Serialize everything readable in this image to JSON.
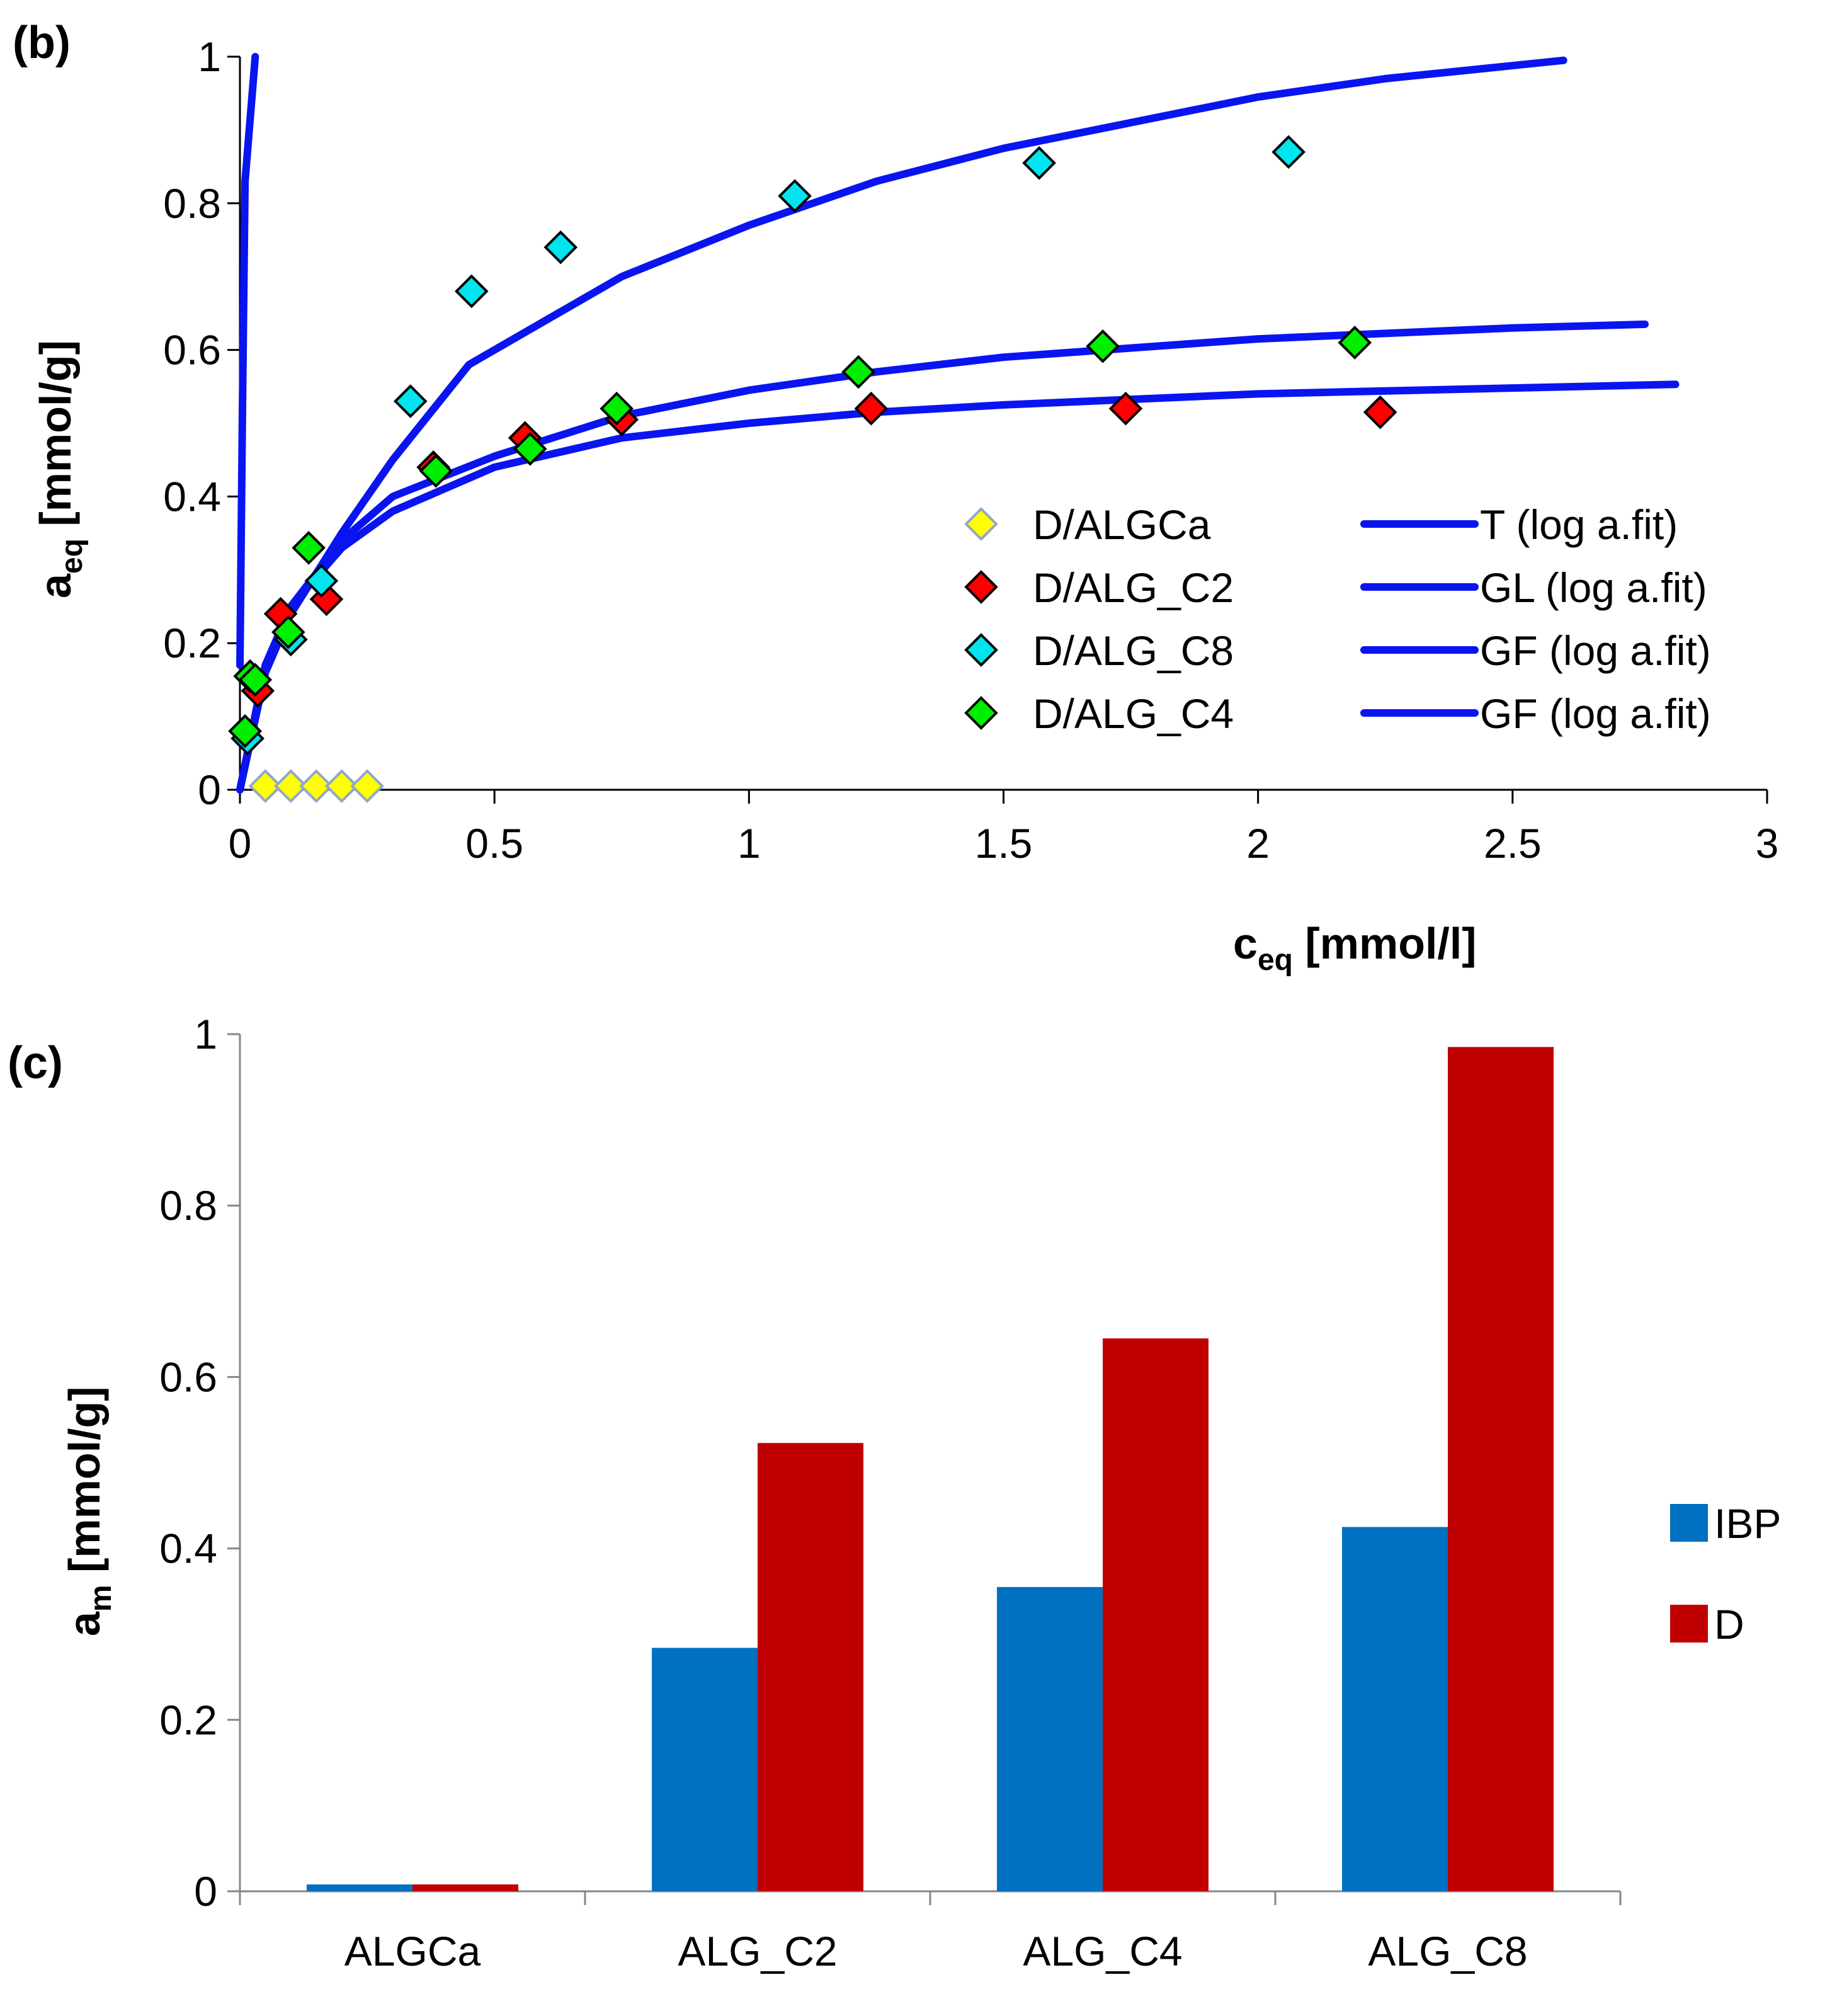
{
  "chart_data": [
    {
      "panel_label": "(b)",
      "type": "scatter",
      "xlabel": "c",
      "xlabel_sub": "eq",
      "xlabel_units": " [mmol/l]",
      "ylabel": "a",
      "ylabel_sub": "eq",
      "ylabel_units": " [mmol/g]",
      "xlim": [
        0,
        3
      ],
      "ylim": [
        0,
        1
      ],
      "x_ticks": [
        "0",
        "0.5",
        "1",
        "1.5",
        "2",
        "2.5",
        "3"
      ],
      "y_ticks": [
        "0",
        "0.2",
        "0.4",
        "0.6",
        "0.8",
        "1"
      ],
      "legend_position": "center-right",
      "series": [
        {
          "name": "D/ALGCa",
          "marker": "diamond",
          "color": "#ffff00",
          "edge": "#8fa8c8",
          "points": [
            [
              0.05,
              0.005
            ],
            [
              0.1,
              0.005
            ],
            [
              0.15,
              0.005
            ],
            [
              0.2,
              0.005
            ],
            [
              0.25,
              0.005
            ]
          ]
        },
        {
          "name": "D/ALG_C2",
          "marker": "diamond",
          "color": "#ff0000",
          "edge": "#000000",
          "points": [
            [
              0.01,
              0.08
            ],
            [
              0.035,
              0.135
            ],
            [
              0.08,
              0.24
            ],
            [
              0.17,
              0.26
            ],
            [
              0.38,
              0.44
            ],
            [
              0.56,
              0.48
            ],
            [
              0.75,
              0.505
            ],
            [
              1.24,
              0.52
            ],
            [
              1.74,
              0.52
            ],
            [
              2.24,
              0.515
            ]
          ]
        },
        {
          "name": "D/ALG_C8",
          "marker": "diamond",
          "color": "#00e5ee",
          "edge": "#000000",
          "points": [
            [
              0.015,
              0.07
            ],
            [
              0.1,
              0.205
            ],
            [
              0.16,
              0.285
            ],
            [
              0.335,
              0.53
            ],
            [
              0.455,
              0.68
            ],
            [
              0.63,
              0.74
            ],
            [
              1.09,
              0.81
            ],
            [
              1.57,
              0.855
            ],
            [
              2.06,
              0.87
            ]
          ]
        },
        {
          "name": "D/ALG_C4",
          "marker": "diamond",
          "color": "#00ee00",
          "edge": "#000000",
          "points": [
            [
              0.01,
              0.08
            ],
            [
              0.02,
              0.155
            ],
            [
              0.03,
              0.15
            ],
            [
              0.095,
              0.215
            ],
            [
              0.135,
              0.33
            ],
            [
              0.385,
              0.435
            ],
            [
              0.57,
              0.465
            ],
            [
              0.74,
              0.52
            ],
            [
              1.215,
              0.57
            ],
            [
              1.695,
              0.605
            ],
            [
              2.19,
              0.61
            ]
          ]
        },
        {
          "name": "T (log a.fit)",
          "marker": "line",
          "color": "#0a14f0",
          "points": [
            [
              0,
              0.17
            ],
            [
              0.005,
              0.52
            ],
            [
              0.01,
              0.83
            ],
            [
              0.03,
              1.0
            ]
          ]
        },
        {
          "name": "GL (log a.fit)",
          "marker": "line",
          "color": "#0a14f0",
          "points": [
            [
              0,
              0
            ],
            [
              0.05,
              0.16
            ],
            [
              0.1,
              0.24
            ],
            [
              0.2,
              0.35
            ],
            [
              0.3,
              0.45
            ],
            [
              0.45,
              0.58
            ],
            [
              0.6,
              0.64
            ],
            [
              0.75,
              0.7
            ],
            [
              1.0,
              0.77
            ],
            [
              1.25,
              0.83
            ],
            [
              1.5,
              0.875
            ],
            [
              1.75,
              0.91
            ],
            [
              2.0,
              0.945
            ],
            [
              2.25,
              0.97
            ],
            [
              2.6,
              0.995
            ]
          ]
        },
        {
          "name": "GF (log a.fit)",
          "marker": "line",
          "color": "#0a14f0",
          "points": [
            [
              0,
              0
            ],
            [
              0.05,
              0.17
            ],
            [
              0.1,
              0.25
            ],
            [
              0.2,
              0.34
            ],
            [
              0.3,
              0.4
            ],
            [
              0.5,
              0.455
            ],
            [
              0.75,
              0.51
            ],
            [
              1.0,
              0.545
            ],
            [
              1.25,
              0.57
            ],
            [
              1.5,
              0.59
            ],
            [
              2.0,
              0.615
            ],
            [
              2.5,
              0.63
            ],
            [
              2.76,
              0.635
            ]
          ]
        },
        {
          "name": "GF (log a.fit)",
          "marker": "line",
          "color": "#0a14f0",
          "points": [
            [
              0,
              0
            ],
            [
              0.05,
              0.17
            ],
            [
              0.1,
              0.25
            ],
            [
              0.2,
              0.33
            ],
            [
              0.3,
              0.38
            ],
            [
              0.5,
              0.44
            ],
            [
              0.75,
              0.48
            ],
            [
              1.0,
              0.5
            ],
            [
              1.25,
              0.515
            ],
            [
              1.5,
              0.525
            ],
            [
              2.0,
              0.54
            ],
            [
              2.5,
              0.548
            ],
            [
              2.82,
              0.553
            ]
          ]
        }
      ]
    },
    {
      "panel_label": "(c)",
      "type": "bar",
      "categories": [
        "ALGCa",
        "ALG_C2",
        "ALG_C4",
        "ALG_C8"
      ],
      "ylabel": "a",
      "ylabel_sub": "m",
      "ylabel_units": " [mmol/g]",
      "ylim": [
        0,
        1
      ],
      "y_ticks": [
        "0",
        "0.2",
        "0.4",
        "0.6",
        "0.8",
        "1"
      ],
      "legend_position": "right",
      "series": [
        {
          "name": "IBP",
          "color": "#0070c0",
          "values": [
            0.008,
            0.284,
            0.355,
            0.425
          ]
        },
        {
          "name": "D",
          "color": "#c00000",
          "values": [
            0.008,
            0.523,
            0.645,
            0.985
          ]
        }
      ]
    }
  ]
}
